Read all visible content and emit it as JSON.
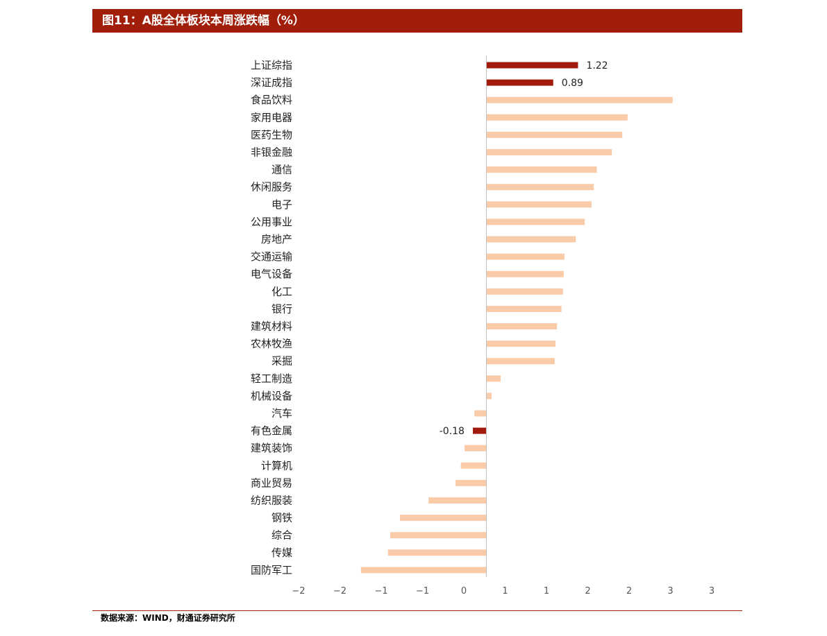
{
  "header": {
    "title": "图11：A股全体板块本周涨跌幅（%）"
  },
  "footer": {
    "source": "数据来源：WIND，财通证券研究所"
  },
  "colors": {
    "accent": "#a01e0a",
    "highlight_bar": "#a21a0c",
    "bar": "#f9cba8",
    "axis": "#bfbfbf"
  },
  "chart_data": {
    "type": "bar",
    "orientation": "horizontal",
    "categories": [
      "上证综指",
      "深证成指",
      "食品饮料",
      "家用电器",
      "医药生物",
      "非银金融",
      "通信",
      "休闲服务",
      "电子",
      "公用事业",
      "房地产",
      "交通运输",
      "电气设备",
      "化工",
      "银行",
      "建筑材料",
      "农林牧渔",
      "采掘",
      "轻工制造",
      "机械设备",
      "汽车",
      "有色金属",
      "建筑装饰",
      "计算机",
      "商业贸易",
      "纺织服装",
      "钢铁",
      "综合",
      "传媒",
      "国防军工"
    ],
    "values": [
      1.22,
      0.89,
      2.48,
      1.88,
      1.81,
      1.67,
      1.47,
      1.43,
      1.4,
      1.31,
      1.19,
      1.04,
      1.03,
      1.02,
      1.0,
      0.94,
      0.92,
      0.91,
      0.19,
      0.07,
      -0.16,
      -0.18,
      -0.29,
      -0.34,
      -0.41,
      -0.77,
      -1.15,
      -1.28,
      -1.31,
      -1.67
    ],
    "highlighted": [
      "上证综指",
      "深证成指",
      "有色金属"
    ],
    "data_labels": {
      "上证综指": "1.22",
      "深证成指": "0.89",
      "有色金属": "-0.18"
    },
    "x_tick_labels": [
      "−2",
      "−2",
      "−1",
      "−1",
      "0",
      "1",
      "1",
      "2",
      "2",
      "3",
      "3"
    ],
    "xlim": [
      -2.5,
      3
    ],
    "grid": false,
    "xlabel": "",
    "ylabel": ""
  }
}
